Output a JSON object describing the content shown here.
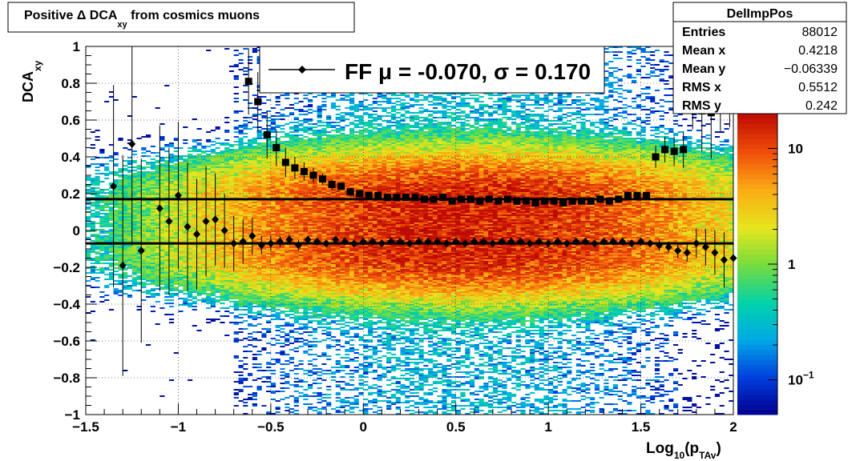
{
  "title": {
    "prefix": "Positive ",
    "delta": "Δ",
    "dca": " DCA",
    "dca_sub": "xy",
    "suffix": " from cosmics muons"
  },
  "stats": {
    "name": "DelImpPos",
    "rows": [
      {
        "label": "Entries",
        "value": "88012"
      },
      {
        "label": "Mean x",
        "value": "0.4218"
      },
      {
        "label": "Mean y",
        "value": "−0.06339"
      },
      {
        "label": "RMS x",
        "value": "0.5512"
      },
      {
        "label": "RMS y",
        "value": "0.242"
      }
    ]
  },
  "legend": {
    "text": "FF μ = -0.070, σ =   0.170"
  },
  "axes": {
    "ylabel_main": "DCA",
    "ylabel_sub": "xy",
    "xlabel_main": "Log",
    "xlabel_sub1": "10",
    "xlabel_mid": "(p",
    "xlabel_sub2": "TAv",
    "xlabel_end": ")"
  },
  "palette": {
    "low": "#00008b",
    "mid": "#f0e000",
    "high": "#d01000",
    "marker": "#000000"
  },
  "chart_data": {
    "type": "heatmap",
    "xlim": [
      -1.5,
      2.0
    ],
    "ylim": [
      -1.0,
      1.0
    ],
    "x_ticks": [
      {
        "v": -1.5,
        "label": "−1.5"
      },
      {
        "v": -1.0,
        "label": "−1"
      },
      {
        "v": -0.5,
        "label": "−0.5"
      },
      {
        "v": 0.0,
        "label": "0"
      },
      {
        "v": 0.5,
        "label": "0.5"
      },
      {
        "v": 1.0,
        "label": "1"
      },
      {
        "v": 1.5,
        "label": "1.5"
      },
      {
        "v": 2.0,
        "label": "2"
      }
    ],
    "y_ticks": [
      {
        "v": 1.0,
        "label": "1"
      },
      {
        "v": 0.8,
        "label": "0.8"
      },
      {
        "v": 0.6,
        "label": "0.6"
      },
      {
        "v": 0.4,
        "label": "0.4"
      },
      {
        "v": 0.2,
        "label": "0.2"
      },
      {
        "v": 0.0,
        "label": "0"
      },
      {
        "v": -0.2,
        "label": "−0.2"
      },
      {
        "v": -0.4,
        "label": "−0.4"
      },
      {
        "v": -0.6,
        "label": "−0.6"
      },
      {
        "v": -0.8,
        "label": "−0.8"
      },
      {
        "v": -1.0,
        "label": "−1"
      }
    ],
    "z_scale": "log",
    "z_range": [
      0.05,
      20
    ],
    "z_ticks": [
      {
        "v": 10,
        "label": "10",
        "exp": ""
      },
      {
        "v": 1,
        "label": "1",
        "exp": ""
      },
      {
        "v": 0.1,
        "label": "10",
        "exp": "−1"
      }
    ],
    "grid": true,
    "heatmap_model": {
      "bands": [
        {
          "y_center": 0.18,
          "sigma": 0.13,
          "strength": 1.0
        },
        {
          "y_center": -0.12,
          "sigma": 0.13,
          "strength": 1.0
        }
      ],
      "x_peak": 0.55,
      "x_sigma": 0.75,
      "peak_z": 15,
      "background_z": 0.1
    },
    "fit_lines": [
      {
        "name": "mean",
        "y": -0.07
      },
      {
        "name": "sigma",
        "y": 0.17
      }
    ],
    "series": [
      {
        "name": "mean",
        "marker": "diamond",
        "x": [
          -1.35,
          -1.3,
          -1.25,
          -1.2,
          -1.15,
          -1.1,
          -1.05,
          -1.0,
          -0.95,
          -0.9,
          -0.85,
          -0.8,
          -0.75,
          -0.7,
          -0.65,
          -0.6,
          -0.55,
          -0.5,
          -0.45,
          -0.4,
          -0.35,
          -0.3,
          -0.25,
          -0.2,
          -0.15,
          -0.1,
          -0.05,
          0.0,
          0.05,
          0.1,
          0.15,
          0.2,
          0.25,
          0.3,
          0.35,
          0.4,
          0.45,
          0.5,
          0.55,
          0.6,
          0.65,
          0.7,
          0.75,
          0.8,
          0.85,
          0.9,
          0.95,
          1.0,
          1.05,
          1.1,
          1.15,
          1.2,
          1.25,
          1.3,
          1.35,
          1.4,
          1.45,
          1.5,
          1.55,
          1.6,
          1.65,
          1.7,
          1.75,
          1.8,
          1.85,
          1.9,
          1.95,
          2.0
        ],
        "y": [
          0.24,
          -0.19,
          0.47,
          -0.11,
          null,
          0.12,
          0.05,
          0.19,
          0.02,
          -0.02,
          0.05,
          0.06,
          0.0,
          -0.07,
          -0.06,
          -0.03,
          -0.08,
          -0.07,
          -0.06,
          -0.05,
          -0.08,
          -0.05,
          -0.06,
          -0.07,
          -0.05,
          -0.06,
          -0.07,
          -0.06,
          -0.06,
          -0.07,
          -0.06,
          -0.06,
          -0.07,
          -0.06,
          -0.06,
          -0.06,
          -0.07,
          -0.06,
          -0.07,
          -0.06,
          -0.06,
          -0.07,
          -0.06,
          -0.06,
          -0.06,
          -0.07,
          -0.06,
          -0.07,
          -0.06,
          -0.07,
          -0.06,
          -0.06,
          -0.07,
          -0.06,
          -0.06,
          -0.06,
          -0.07,
          -0.06,
          -0.07,
          -0.08,
          -0.09,
          -0.11,
          -0.12,
          -0.07,
          -0.09,
          -0.12,
          -0.16,
          -0.15
        ],
        "yerr": [
          0.55,
          0.6,
          0.55,
          0.5,
          null,
          0.45,
          0.4,
          0.4,
          0.35,
          0.3,
          0.3,
          0.25,
          0.2,
          0.15,
          0.12,
          0.1,
          0.05,
          0.04,
          0.03,
          0.03,
          0.03,
          0.02,
          0.02,
          0.02,
          0.02,
          0.02,
          0.02,
          0.02,
          0.02,
          0.02,
          0.02,
          0.02,
          0.02,
          0.02,
          0.02,
          0.02,
          0.02,
          0.02,
          0.02,
          0.02,
          0.02,
          0.02,
          0.02,
          0.02,
          0.02,
          0.02,
          0.02,
          0.02,
          0.02,
          0.02,
          0.02,
          0.02,
          0.02,
          0.02,
          0.02,
          0.02,
          0.02,
          0.02,
          0.02,
          0.03,
          0.03,
          0.04,
          0.05,
          0.08,
          0.1,
          0.12,
          0.15,
          0.18
        ]
      },
      {
        "name": "sigma",
        "marker": "square",
        "x": [
          -0.62,
          -0.57,
          -0.52,
          -0.47,
          -0.42,
          -0.37,
          -0.32,
          -0.27,
          -0.22,
          -0.17,
          -0.12,
          -0.07,
          -0.02,
          0.03,
          0.08,
          0.13,
          0.18,
          0.23,
          0.28,
          0.33,
          0.38,
          0.43,
          0.48,
          0.53,
          0.58,
          0.63,
          0.68,
          0.73,
          0.78,
          0.83,
          0.88,
          0.93,
          0.98,
          1.03,
          1.08,
          1.13,
          1.18,
          1.23,
          1.28,
          1.33,
          1.38,
          1.43,
          1.48,
          1.53,
          1.58,
          1.63,
          1.68,
          1.73,
          1.78,
          1.83,
          1.88,
          1.93,
          1.98
        ],
        "y": [
          0.81,
          0.7,
          0.52,
          0.45,
          0.37,
          0.34,
          0.32,
          0.3,
          0.28,
          0.25,
          0.24,
          0.21,
          0.2,
          0.19,
          0.19,
          0.18,
          0.18,
          0.18,
          0.18,
          0.17,
          0.17,
          0.18,
          0.16,
          0.17,
          0.17,
          0.16,
          0.17,
          0.16,
          0.17,
          0.16,
          0.16,
          0.15,
          0.16,
          0.16,
          0.15,
          0.16,
          0.16,
          0.16,
          0.17,
          0.16,
          0.17,
          0.19,
          0.19,
          0.19,
          0.4,
          0.44,
          0.43,
          0.44,
          0.75,
          0.65,
          0.64,
          0.84,
          0.86
        ],
        "yerr": [
          0.18,
          0.16,
          0.13,
          0.1,
          0.08,
          0.06,
          0.05,
          0.04,
          0.03,
          0.03,
          0.02,
          0.02,
          0.02,
          0.02,
          0.02,
          0.02,
          0.02,
          0.02,
          0.02,
          0.02,
          0.02,
          0.02,
          0.02,
          0.02,
          0.02,
          0.02,
          0.02,
          0.02,
          0.02,
          0.02,
          0.02,
          0.02,
          0.02,
          0.02,
          0.02,
          0.02,
          0.02,
          0.02,
          0.02,
          0.02,
          0.02,
          0.02,
          0.02,
          0.02,
          0.06,
          0.07,
          0.08,
          0.1,
          0.2,
          0.22,
          0.25,
          0.3,
          0.3
        ]
      }
    ]
  }
}
